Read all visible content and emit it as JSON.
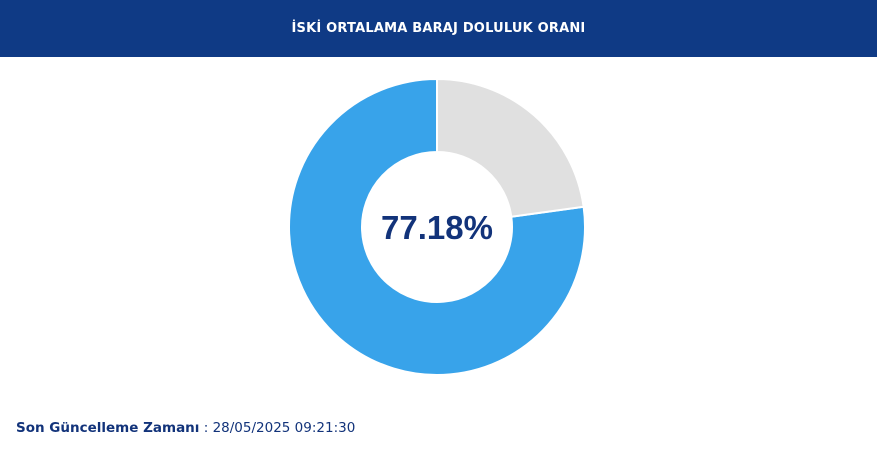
{
  "header": {
    "title": "İSKİ ORTALAMA BARAJ DOLULUK ORANI"
  },
  "chart_data": {
    "type": "pie",
    "variant": "donut",
    "center_label": "77.18%",
    "slices": [
      {
        "value": 77.18,
        "color": "#38a3ea"
      },
      {
        "value": 22.82,
        "color": "#e0e0e0"
      }
    ]
  },
  "footer": {
    "label": "Son Güncelleme Zamanı",
    "separator": " : ",
    "timestamp": "28/05/2025 09:21:30"
  }
}
